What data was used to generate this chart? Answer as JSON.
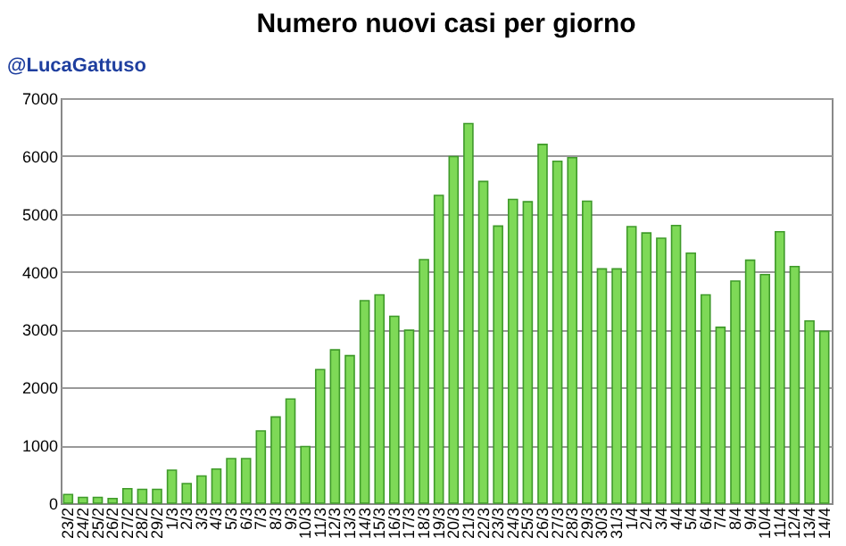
{
  "chart_data": {
    "type": "bar",
    "title": "Numero nuovi casi per giorno",
    "annotations": [
      "@LucaGattuso"
    ],
    "categories": [
      "23/2",
      "24/2",
      "25/2",
      "26/2",
      "27/2",
      "28/2",
      "29/2",
      "1/3",
      "2/3",
      "3/3",
      "4/3",
      "5/3",
      "6/3",
      "7/3",
      "8/3",
      "9/3",
      "10/3",
      "11/3",
      "12/3",
      "13/3",
      "14/3",
      "15/3",
      "16/3",
      "17/3",
      "18/3",
      "19/3",
      "20/3",
      "21/3",
      "22/3",
      "23/3",
      "24/3",
      "25/3",
      "26/3",
      "27/3",
      "28/3",
      "29/3",
      "30/3",
      "31/3",
      "1/4",
      "2/4",
      "3/4",
      "4/4",
      "5/4",
      "6/4",
      "7/4",
      "8/4",
      "9/4",
      "10/4",
      "11/4",
      "12/4",
      "13/4",
      "14/4"
    ],
    "values": [
      150,
      100,
      100,
      80,
      250,
      240,
      240,
      570,
      340,
      470,
      590,
      770,
      770,
      1250,
      1490,
      1800,
      980,
      2310,
      2650,
      2550,
      3500,
      3600,
      3230,
      2990,
      4210,
      5320,
      5990,
      6560,
      5560,
      4790,
      5250,
      5210,
      6200,
      5910,
      5970,
      5220,
      4050,
      4050,
      4780,
      4670,
      4580,
      4800,
      4320,
      3600,
      3040,
      3840,
      4200,
      3950,
      4690,
      4090,
      3150,
      2970
    ],
    "color": "#7ed957",
    "ylim": [
      0,
      7000
    ],
    "yticks": [
      0,
      1000,
      2000,
      3000,
      4000,
      5000,
      6000,
      7000
    ],
    "grid": "y"
  }
}
